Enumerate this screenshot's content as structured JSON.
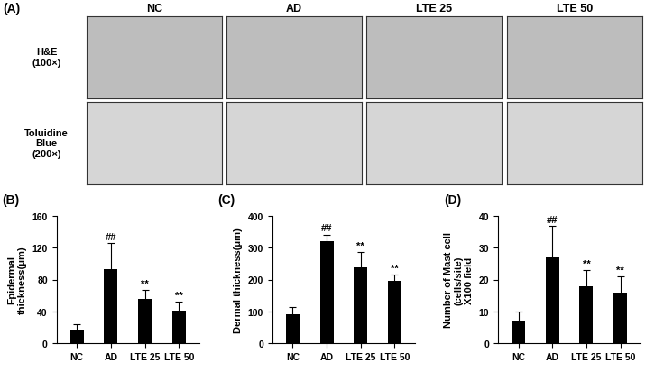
{
  "panel_a": {
    "label": "(A)",
    "columns": [
      "NC",
      "AD",
      "LTE 25",
      "LTE 50"
    ],
    "rows": [
      "H&E\n(100×)",
      "Toluidine\nBlue\n(200×)"
    ]
  },
  "chart_data": [
    {
      "type": "bar",
      "title": "(B)",
      "categories": [
        "NC",
        "AD",
        "LTE 25",
        "LTE 50"
      ],
      "values": [
        17,
        93,
        56,
        41
      ],
      "errors": [
        7,
        33,
        11,
        11
      ],
      "annotations": [
        null,
        "##",
        "**",
        "**"
      ],
      "y_label": "Epidermal\nthickness(μm)",
      "color": "#000000",
      "ylim": [
        0,
        160
      ],
      "yticks": [
        0,
        40,
        80,
        120,
        160
      ]
    },
    {
      "type": "bar",
      "title": "(C)",
      "categories": [
        "NC",
        "AD",
        "LTE 25",
        "LTE 50"
      ],
      "values": [
        92,
        320,
        238,
        195
      ],
      "errors": [
        20,
        22,
        48,
        20
      ],
      "annotations": [
        null,
        "##",
        "**",
        "**"
      ],
      "y_label": "Dermal thickness(μm)",
      "color": "#000000",
      "ylim": [
        0,
        400
      ],
      "yticks": [
        0,
        100,
        200,
        300,
        400
      ]
    },
    {
      "type": "bar",
      "title": "(D)",
      "categories": [
        "NC",
        "AD",
        "LTE 25",
        "LTE 50"
      ],
      "values": [
        7,
        27,
        18,
        16
      ],
      "errors": [
        3,
        10,
        5,
        5
      ],
      "annotations": [
        null,
        "##",
        "**",
        "**"
      ],
      "y_label": "Number of Mast cell\n(cells/site)\nX100 field",
      "color": "#000000",
      "ylim": [
        0,
        40
      ],
      "yticks": [
        0,
        10,
        20,
        30,
        40
      ]
    }
  ]
}
